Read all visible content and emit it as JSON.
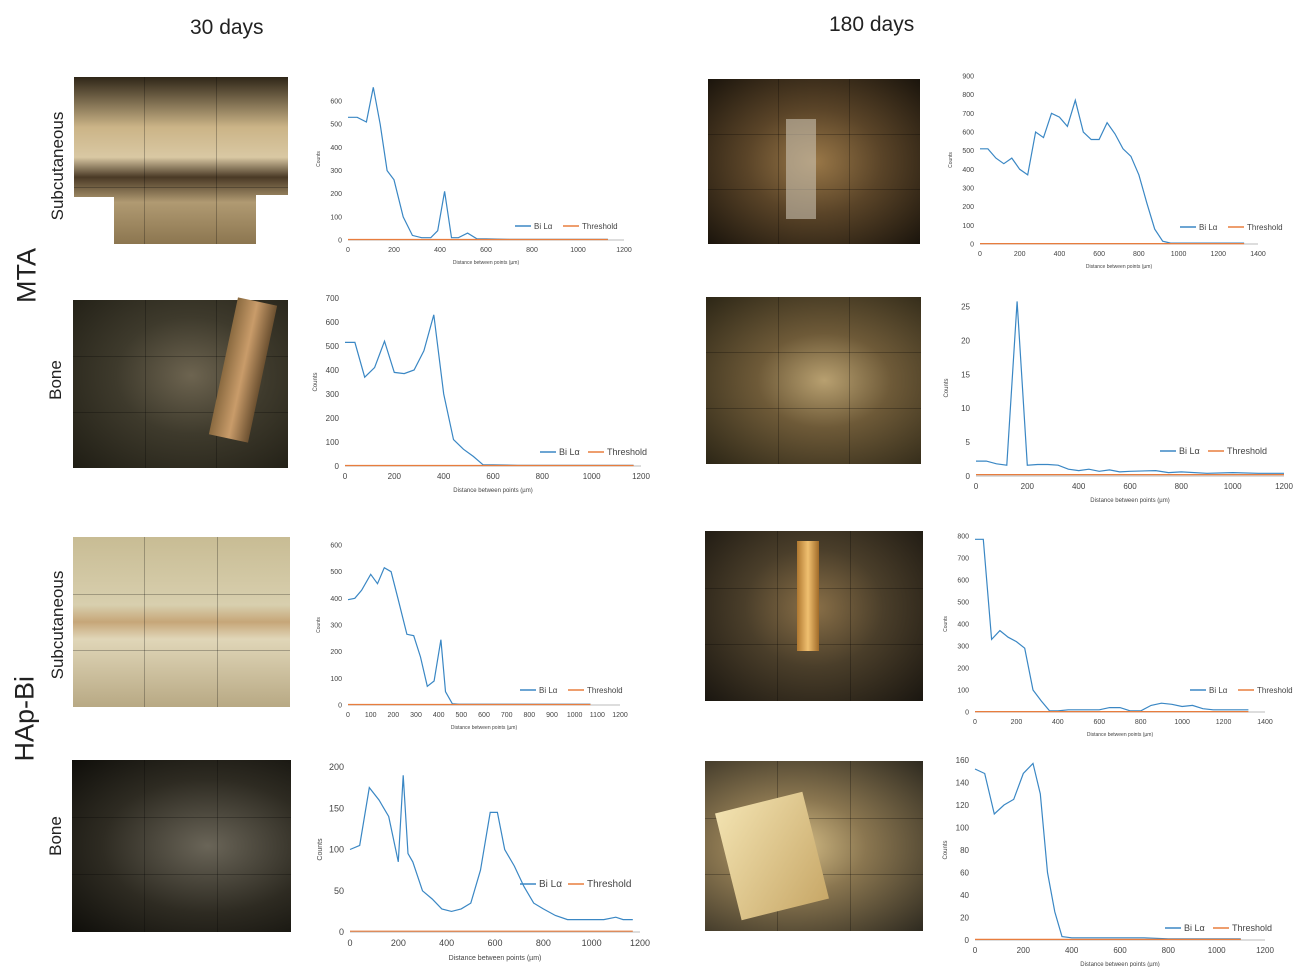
{
  "columns": [
    "30 days",
    "180 days"
  ],
  "groups": [
    "MTA",
    "HAp-Bi"
  ],
  "row_labels": [
    "Subcutaneous",
    "Bone",
    "Subcutaneous",
    "Bone"
  ],
  "colors": {
    "bi": "#3a87c4",
    "threshold": "#e87d3e"
  },
  "chart_data": [
    {
      "type": "line",
      "title": "",
      "xlabel": "Distance  between points (µm)",
      "ylabel": "Counts",
      "xlim": [
        0,
        1200
      ],
      "ylim": [
        0,
        700
      ],
      "xticks": [
        0,
        200,
        400,
        600,
        800,
        1000,
        1200
      ],
      "yticks": [
        0,
        100,
        200,
        300,
        400,
        500,
        600
      ],
      "legend": "bottom-right",
      "series": [
        {
          "name": "Bi Lα",
          "x": [
            0,
            40,
            80,
            110,
            140,
            170,
            200,
            240,
            280,
            320,
            360,
            390,
            420,
            450,
            480,
            520,
            560,
            600,
            700,
            800,
            900,
            1000,
            1130
          ],
          "y": [
            530,
            530,
            510,
            660,
            500,
            300,
            260,
            100,
            20,
            10,
            10,
            40,
            210,
            10,
            10,
            30,
            5,
            5,
            3,
            3,
            3,
            3,
            3
          ]
        },
        {
          "name": "Threshold",
          "x": [
            0,
            1130
          ],
          "y": [
            2,
            2
          ]
        }
      ]
    },
    {
      "type": "line",
      "title": "",
      "xlabel": "Distance  between points (µm)",
      "ylabel": "Counts",
      "xlim": [
        0,
        1400
      ],
      "ylim": [
        0,
        900
      ],
      "xticks": [
        0,
        200,
        400,
        600,
        800,
        1000,
        1200,
        1400
      ],
      "yticks": [
        0,
        100,
        200,
        300,
        400,
        500,
        600,
        700,
        800,
        900
      ],
      "legend": "bottom-right",
      "series": [
        {
          "name": "Bi Lα",
          "x": [
            0,
            40,
            80,
            120,
            160,
            200,
            240,
            280,
            320,
            360,
            400,
            440,
            480,
            520,
            560,
            600,
            640,
            680,
            720,
            760,
            800,
            840,
            880,
            920,
            960,
            1000,
            1040,
            1100,
            1200,
            1330
          ],
          "y": [
            510,
            510,
            460,
            430,
            460,
            400,
            370,
            600,
            570,
            700,
            680,
            630,
            770,
            600,
            560,
            560,
            650,
            590,
            510,
            470,
            370,
            220,
            80,
            15,
            5,
            5,
            5,
            5,
            5,
            5
          ]
        },
        {
          "name": "Threshold",
          "x": [
            0,
            1330
          ],
          "y": [
            2,
            2
          ]
        }
      ]
    },
    {
      "type": "line",
      "title": "",
      "xlabel": "Distance  between points (µm)",
      "ylabel": "Counts",
      "xlim": [
        0,
        1200
      ],
      "ylim": [
        0,
        700
      ],
      "xticks": [
        0,
        200,
        400,
        600,
        800,
        1000,
        1200
      ],
      "yticks": [
        0,
        100,
        200,
        300,
        400,
        500,
        600,
        700
      ],
      "legend": "bottom-right",
      "series": [
        {
          "name": "Bi Lα",
          "x": [
            0,
            40,
            80,
            120,
            160,
            200,
            240,
            280,
            320,
            360,
            400,
            440,
            480,
            520,
            560,
            600,
            700,
            800,
            900,
            1000,
            1170
          ],
          "y": [
            515,
            515,
            370,
            410,
            520,
            390,
            385,
            400,
            480,
            630,
            300,
            110,
            70,
            40,
            5,
            5,
            3,
            3,
            3,
            3,
            3
          ]
        },
        {
          "name": "Threshold",
          "x": [
            0,
            1170
          ],
          "y": [
            2,
            2
          ]
        }
      ]
    },
    {
      "type": "line",
      "title": "",
      "xlabel": "Distance  between points (µm)",
      "ylabel": "Counts",
      "xlim": [
        0,
        1200
      ],
      "ylim": [
        0,
        26
      ],
      "xticks": [
        0,
        200,
        400,
        600,
        800,
        1000,
        1200
      ],
      "yticks": [
        0,
        5,
        10,
        15,
        20,
        25
      ],
      "legend": "bottom-right",
      "series": [
        {
          "name": "Bi Lα",
          "x": [
            0,
            40,
            80,
            120,
            160,
            200,
            240,
            280,
            320,
            360,
            400,
            440,
            480,
            520,
            560,
            600,
            700,
            750,
            800,
            900,
            1000,
            1100,
            1200
          ],
          "y": [
            2.2,
            2.2,
            1.8,
            1.6,
            25.8,
            1.6,
            1.7,
            1.7,
            1.6,
            1.0,
            0.8,
            1.0,
            0.7,
            0.9,
            0.6,
            0.7,
            0.8,
            0.5,
            0.6,
            0.4,
            0.5,
            0.4,
            0.4
          ]
        },
        {
          "name": "Threshold",
          "x": [
            0,
            1200
          ],
          "y": [
            0.2,
            0.2
          ]
        }
      ]
    },
    {
      "type": "line",
      "title": "",
      "xlabel": "Distance  between points (µm)",
      "ylabel": "Counts",
      "xlim": [
        0,
        1200
      ],
      "ylim": [
        0,
        600
      ],
      "xticks": [
        0,
        100,
        200,
        300,
        400,
        500,
        600,
        700,
        800,
        900,
        1000,
        1100,
        1200
      ],
      "yticks": [
        0,
        100,
        200,
        300,
        400,
        500,
        600
      ],
      "legend": "bottom-right",
      "series": [
        {
          "name": "Bi Lα",
          "x": [
            0,
            30,
            60,
            100,
            130,
            160,
            190,
            220,
            260,
            290,
            320,
            350,
            380,
            410,
            430,
            460,
            490,
            520,
            560,
            600,
            700,
            800,
            900,
            1000,
            1070
          ],
          "y": [
            395,
            400,
            430,
            490,
            455,
            515,
            500,
            400,
            265,
            260,
            180,
            70,
            90,
            245,
            50,
            5,
            3,
            3,
            3,
            3,
            3,
            3,
            3,
            3,
            3
          ]
        },
        {
          "name": "Threshold",
          "x": [
            0,
            1070
          ],
          "y": [
            2,
            2
          ]
        }
      ]
    },
    {
      "type": "line",
      "title": "",
      "xlabel": "Distance  between points (µm)",
      "ylabel": "Counts",
      "xlim": [
        0,
        1400
      ],
      "ylim": [
        0,
        800
      ],
      "xticks": [
        0,
        200,
        400,
        600,
        800,
        1000,
        1200,
        1400
      ],
      "yticks": [
        0,
        100,
        200,
        300,
        400,
        500,
        600,
        700,
        800
      ],
      "legend": "bottom-right",
      "series": [
        {
          "name": "Bi Lα",
          "x": [
            0,
            40,
            80,
            120,
            160,
            200,
            240,
            280,
            320,
            360,
            400,
            450,
            500,
            550,
            600,
            650,
            700,
            750,
            800,
            850,
            900,
            950,
            1000,
            1050,
            1100,
            1150,
            1200,
            1250,
            1320
          ],
          "y": [
            785,
            785,
            330,
            370,
            340,
            320,
            290,
            100,
            50,
            5,
            5,
            10,
            10,
            10,
            10,
            20,
            20,
            5,
            5,
            30,
            40,
            35,
            25,
            30,
            15,
            10,
            10,
            10,
            10
          ]
        },
        {
          "name": "Threshold",
          "x": [
            0,
            1320
          ],
          "y": [
            2,
            2
          ]
        }
      ]
    },
    {
      "type": "line",
      "title": "",
      "xlabel": "Distance  between points (µm)",
      "ylabel": "Counts",
      "xlim": [
        0,
        1200
      ],
      "ylim": [
        0,
        200
      ],
      "xticks": [
        0,
        200,
        400,
        600,
        800,
        1000,
        1200
      ],
      "yticks": [
        0,
        50,
        100,
        150,
        200
      ],
      "legend": "right",
      "series": [
        {
          "name": "Bi Lα",
          "x": [
            0,
            40,
            80,
            120,
            160,
            200,
            220,
            240,
            260,
            300,
            340,
            380,
            420,
            460,
            500,
            540,
            580,
            610,
            640,
            680,
            720,
            760,
            800,
            850,
            900,
            950,
            1000,
            1050,
            1100,
            1130,
            1170
          ],
          "y": [
            100,
            105,
            175,
            160,
            140,
            85,
            190,
            95,
            85,
            50,
            40,
            28,
            25,
            28,
            35,
            75,
            145,
            145,
            100,
            80,
            55,
            35,
            28,
            20,
            15,
            15,
            15,
            15,
            18,
            15,
            15
          ]
        },
        {
          "name": "Threshold",
          "x": [
            0,
            1170
          ],
          "y": [
            1,
            1
          ]
        }
      ]
    },
    {
      "type": "line",
      "title": "",
      "xlabel": "Distance  between points (µm)",
      "ylabel": "Counts",
      "xlim": [
        0,
        1200
      ],
      "ylim": [
        0,
        160
      ],
      "xticks": [
        0,
        200,
        400,
        600,
        800,
        1000,
        1200
      ],
      "yticks": [
        0,
        20,
        40,
        60,
        80,
        100,
        120,
        140,
        160
      ],
      "legend": "bottom-right",
      "series": [
        {
          "name": "Bi Lα",
          "x": [
            0,
            40,
            80,
            120,
            160,
            200,
            240,
            270,
            300,
            330,
            360,
            400,
            500,
            600,
            700,
            800,
            900,
            1000,
            1100
          ],
          "y": [
            152,
            148,
            112,
            120,
            125,
            148,
            157,
            130,
            60,
            25,
            3,
            2,
            2,
            2,
            2,
            1,
            1,
            1,
            1
          ]
        },
        {
          "name": "Threshold",
          "x": [
            0,
            1100
          ],
          "y": [
            0.5,
            0.5
          ]
        }
      ]
    }
  ]
}
